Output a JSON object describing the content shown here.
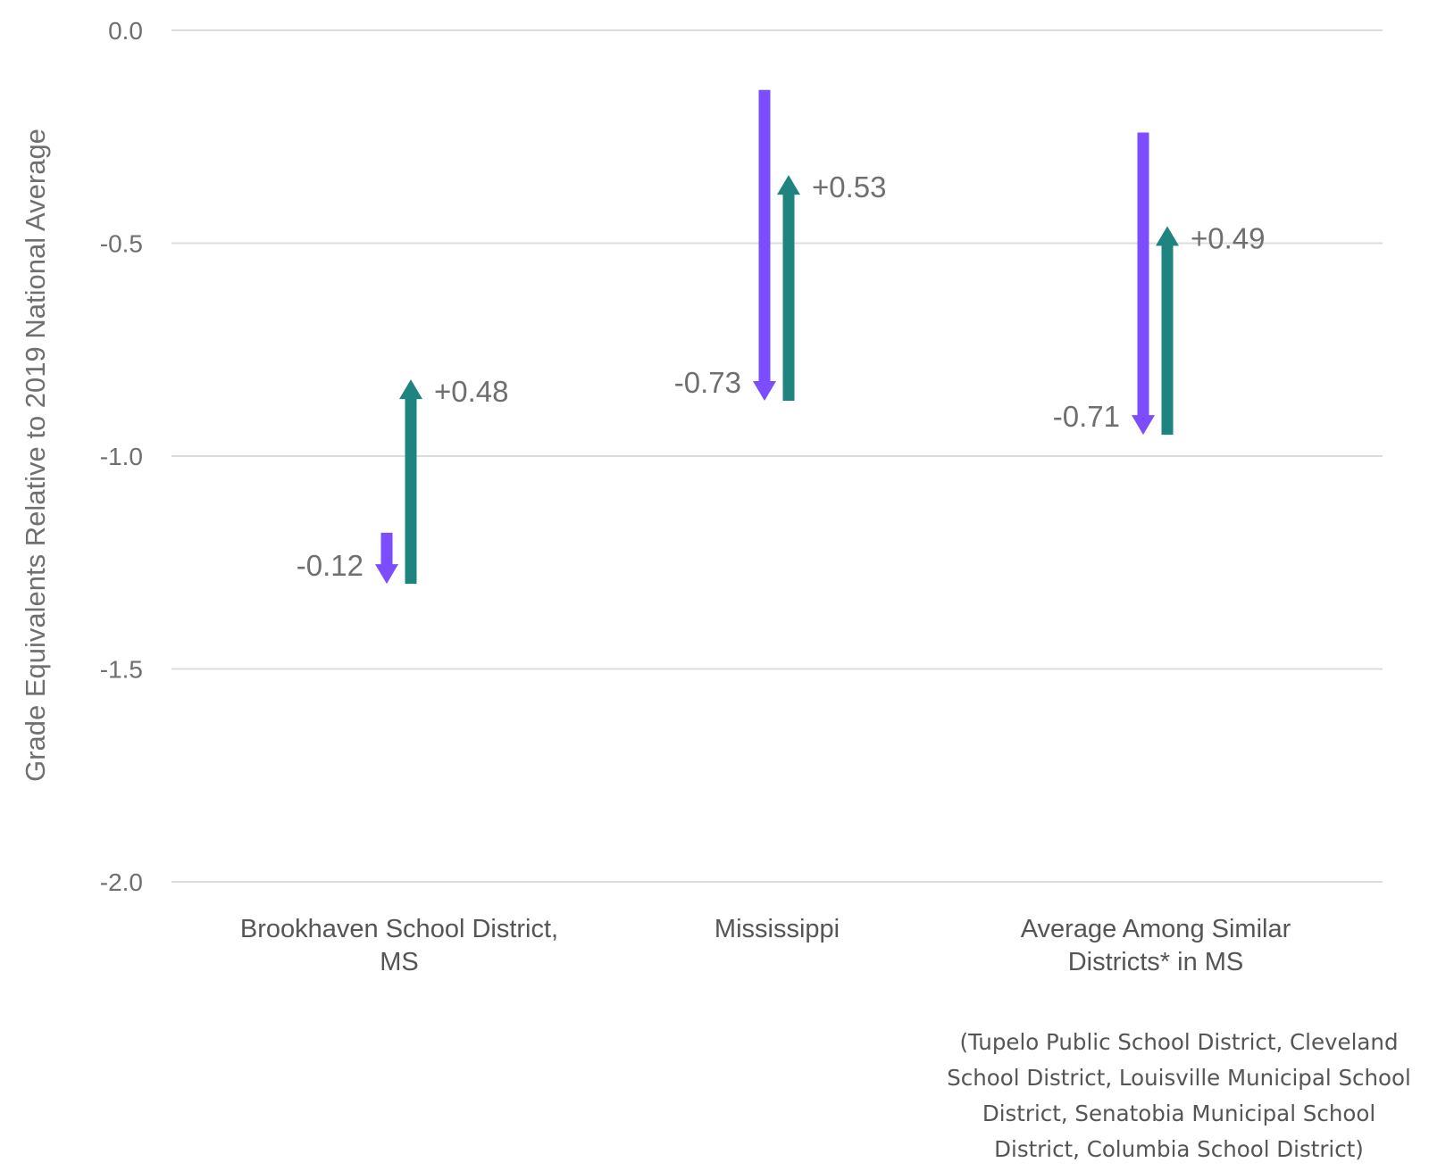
{
  "chart_data": {
    "type": "arrow",
    "ylabel": "Grade Equivalents Relative to 2019 National Average",
    "ylim": [
      -2.0,
      0.0
    ],
    "yticks": [
      "0.0",
      "-0.5",
      "-1.0",
      "-1.5",
      "-2.0"
    ],
    "ytick_values": [
      0.0,
      -0.5,
      -1.0,
      -1.5,
      -2.0
    ],
    "grid": true,
    "colors": {
      "decline": "#7c4dff",
      "recovery": "#1f8480"
    },
    "categories": [
      {
        "label_lines": [
          "Brookhaven School District,",
          "MS"
        ],
        "decline": {
          "start": -1.18,
          "end": -1.3,
          "label": "-0.12"
        },
        "recovery": {
          "start": -1.3,
          "end": -0.82,
          "label": "+0.48"
        }
      },
      {
        "label_lines": [
          "Mississippi"
        ],
        "decline": {
          "start": -0.14,
          "end": -0.87,
          "label": "-0.73"
        },
        "recovery": {
          "start": -0.87,
          "end": -0.34,
          "label": "+0.53"
        }
      },
      {
        "label_lines": [
          "Average Among Similar",
          "Districts* in MS"
        ],
        "decline": {
          "start": -0.24,
          "end": -0.95,
          "label": "-0.71"
        },
        "recovery": {
          "start": -0.95,
          "end": -0.46,
          "label": "+0.49"
        }
      }
    ]
  },
  "footnote": "(Tupelo Public School District, Cleveland\nSchool District, Louisville Municipal School\nDistrict, Senatobia Municipal School\nDistrict, Columbia School District)"
}
